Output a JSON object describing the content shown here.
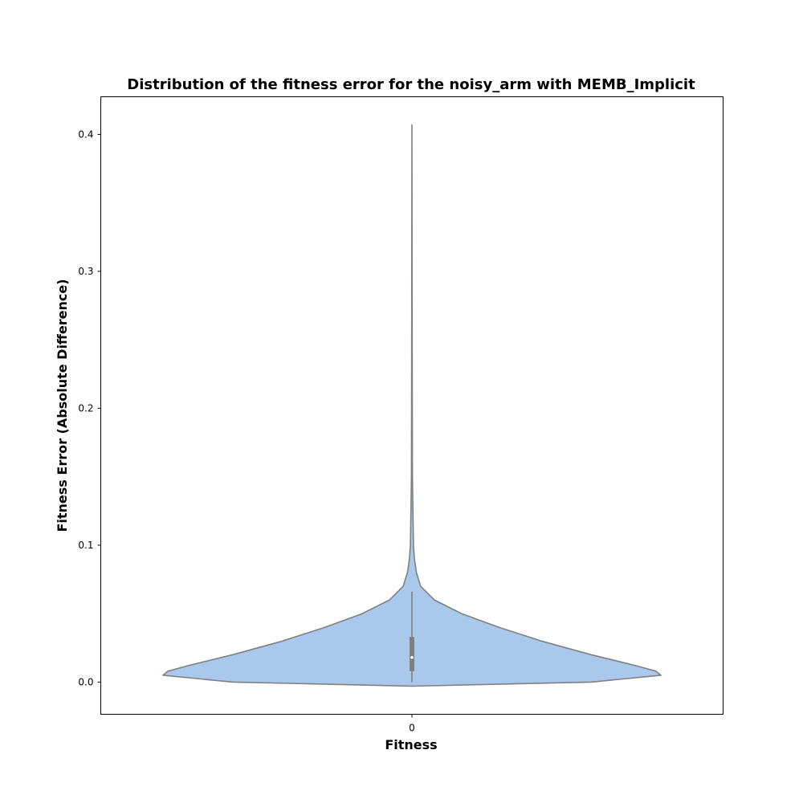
{
  "chart_data": {
    "type": "violin",
    "title": "Distribution of the fitness error for the noisy_arm with MEMB_Implicit",
    "xlabel": "Fitness",
    "ylabel": "Fitness Error (Absolute Difference)",
    "categories": [
      "0"
    ],
    "ylim": [
      -0.0235,
      0.4275
    ],
    "yticks": [
      0.0,
      0.1,
      0.2,
      0.3,
      0.4
    ],
    "ytick_labels": [
      "0.0",
      "0.1",
      "0.2",
      "0.3",
      "0.4"
    ],
    "series": [
      {
        "category": "0",
        "fill_color": "#a9c8eb",
        "edge_color": "#808080",
        "density_profile": [
          {
            "y": -0.003,
            "w": 0.0
          },
          {
            "y": 0.0,
            "w": 0.72
          },
          {
            "y": 0.005,
            "w": 1.0
          },
          {
            "y": 0.008,
            "w": 0.98
          },
          {
            "y": 0.012,
            "w": 0.9
          },
          {
            "y": 0.02,
            "w": 0.72
          },
          {
            "y": 0.03,
            "w": 0.52
          },
          {
            "y": 0.04,
            "w": 0.35
          },
          {
            "y": 0.05,
            "w": 0.2
          },
          {
            "y": 0.06,
            "w": 0.09
          },
          {
            "y": 0.07,
            "w": 0.035
          },
          {
            "y": 0.08,
            "w": 0.018
          },
          {
            "y": 0.09,
            "w": 0.01
          },
          {
            "y": 0.1,
            "w": 0.006
          },
          {
            "y": 0.15,
            "w": 0.002
          },
          {
            "y": 0.25,
            "w": 0.001
          },
          {
            "y": 0.407,
            "w": 0.0
          }
        ],
        "quartiles": [
          0.008,
          0.033
        ],
        "median": 0.018,
        "whiskers": [
          0.0,
          0.066
        ]
      }
    ],
    "grid": false,
    "legend": "none"
  }
}
